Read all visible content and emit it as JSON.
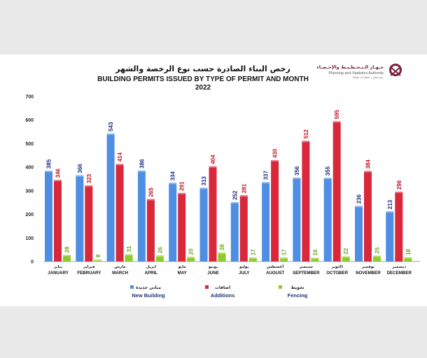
{
  "header": {
    "title_ar": "رخص البناء الصادرة حسب نوع الرخصة والشهر",
    "title_en": "BUILDING PERMITS ISSUED BY TYPE OF PERMIT AND MONTH",
    "year": "2022"
  },
  "logo": {
    "name_ar": "جـهـاز الـتـخـطـيـط والإحـصـاء",
    "name_en": "Planning and Statistics Authority",
    "state": "State of Qatar • دولة قطر"
  },
  "colors": {
    "new_building": "#4f8fe3",
    "additions": "#d8283a",
    "fencing": "#8ccc2a",
    "label_new": "#1f2f82",
    "label_add": "#c1121f",
    "label_fence": "#6aaa1a"
  },
  "chart_data": {
    "type": "bar",
    "title": "BUILDING PERMITS ISSUED BY TYPE OF PERMIT AND MONTH",
    "subtitle": "2022",
    "categories": [
      "JANUARY",
      "FEBRUARY",
      "MARCH",
      "APRIL",
      "MAY",
      "JUNE",
      "JULY",
      "AUGUST",
      "SEPTEMBER",
      "OCTOBER",
      "NOVEMBER",
      "DECEMBER"
    ],
    "categories_ar": [
      "يناير",
      "فبراير",
      "مارس",
      "ابريل",
      "مايو",
      "يونيو",
      "يوليو",
      "أغسطس",
      "سبتمبر",
      "اكتوبر",
      "نوفمبر",
      "ديسمبر"
    ],
    "series": [
      {
        "name": "New Building",
        "name_ar": "مباني جديدة",
        "values": [
          385,
          366,
          543,
          386,
          334,
          313,
          252,
          337,
          356,
          355,
          236,
          213
        ]
      },
      {
        "name": "Additions",
        "name_ar": "اضافات",
        "values": [
          346,
          323,
          414,
          265,
          291,
          404,
          281,
          430,
          512,
          595,
          384,
          296
        ]
      },
      {
        "name": "Fencing",
        "name_ar": "تحويط",
        "values": [
          28,
          8,
          31,
          26,
          20,
          38,
          17,
          17,
          16,
          22,
          25,
          18
        ]
      }
    ],
    "ylim": [
      0,
      700
    ],
    "yticks": [
      "0",
      "100",
      "200",
      "300",
      "400",
      "500",
      "600",
      "700"
    ],
    "grid": false,
    "legend_position": "bottom"
  }
}
